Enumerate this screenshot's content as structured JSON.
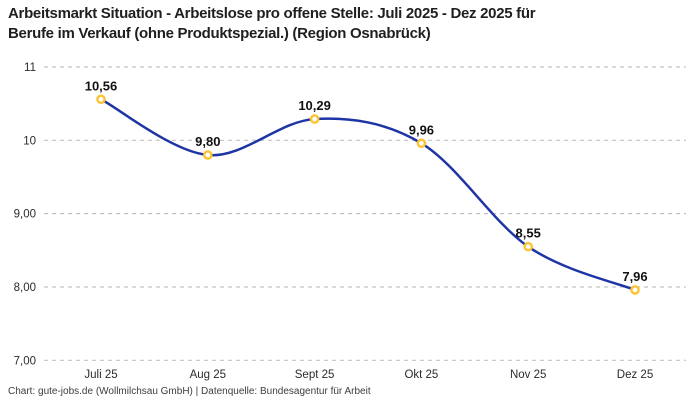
{
  "header": {
    "title_line1": "Arbeitsmarkt Situation - Arbeitslose pro offene Stelle: Juli 2025 - Dez 2025 für",
    "title_line2": "Berufe im Verkauf (ohne Produktspezial.) (Region Osnabrück)"
  },
  "footer": {
    "credit": "Chart: gute-jobs.de (Wollmilchsau GmbH) | Datenquelle: Bundesagentur für Arbeit"
  },
  "chart_data": {
    "type": "line",
    "title": "Arbeitsmarkt Situation - Arbeitslose pro offene Stelle: Juli 2025 - Dez 2025 für Berufe im Verkauf (ohne Produktspezial.) (Region Osnabrück)",
    "categories": [
      "Juli 25",
      "Aug 25",
      "Sept 25",
      "Okt 25",
      "Nov 25",
      "Dez 25"
    ],
    "values": [
      10.56,
      9.8,
      10.29,
      9.96,
      8.55,
      7.96
    ],
    "point_labels": [
      "10,56",
      "9,80",
      "10,29",
      "9,96",
      "8,55",
      "7,96"
    ],
    "y_ticks": [
      {
        "value": 11,
        "label": "11"
      },
      {
        "value": 10,
        "label": "10"
      },
      {
        "value": 9,
        "label": "9,00"
      },
      {
        "value": 8,
        "label": "8,00"
      },
      {
        "value": 7,
        "label": "7,00"
      }
    ],
    "ylim": [
      7,
      11
    ],
    "xlabel": "",
    "ylabel": "",
    "curve": "smooth",
    "grid": "horizontal-dashed",
    "legend": "none",
    "colors": {
      "line": "#1f35a5",
      "marker_ring": "#fdc330",
      "marker_fill": "#ffffff",
      "gridline": "#c2c2c2",
      "axis_text": "#2b2b2b",
      "label_text": "#111111",
      "title_text": "#1f1f1f",
      "credit_text": "#3d3d3d",
      "background": "#ffffff"
    }
  }
}
